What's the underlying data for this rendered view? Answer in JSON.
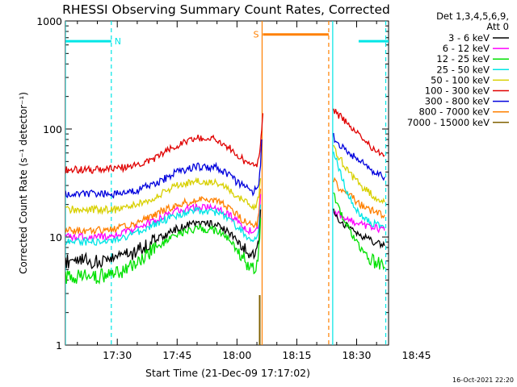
{
  "chart_data": {
    "type": "line",
    "title": "RHESSI Observing Summary Count Rates, Corrected",
    "xlabel": "Start Time (21-Dec-09 17:17:02)",
    "ylabel": "Corrected Count Rate (s⁻¹ detector⁻¹)",
    "yscale": "log",
    "ylim": [
      1,
      1000
    ],
    "xlim_minutes": [
      17.0,
      98.0
    ],
    "x_units": "minutes after 17:00 UT",
    "ytick_labels": [
      "1",
      "10",
      "100",
      "1000"
    ],
    "xtick_labels": [
      "17:30",
      "17:45",
      "18:00",
      "18:15",
      "18:30",
      "18:45"
    ],
    "xtick_values": [
      30,
      45,
      60,
      75,
      90,
      105
    ],
    "legend": {
      "placement": "right",
      "header": [
        "Det 1,3,4,5,6,9,",
        "Att 0"
      ],
      "entries": [
        {
          "label": "3 - 6 keV",
          "color": "#000000"
        },
        {
          "label": "6 - 12 keV",
          "color": "#ff00ff"
        },
        {
          "label": "12 - 25 keV",
          "color": "#00e000"
        },
        {
          "label": "25 - 50 keV",
          "color": "#00e6e6"
        },
        {
          "label": "50 - 100 keV",
          "color": "#d8d000"
        },
        {
          "label": "100 - 300 keV",
          "color": "#e00000"
        },
        {
          "label": "300 - 800 keV",
          "color": "#0000dd"
        },
        {
          "label": "800 - 7000 keV",
          "color": "#ff8000"
        },
        {
          "label": "7000 - 15000 keV",
          "color": "#806000"
        }
      ]
    },
    "series": [
      {
        "name": "100 - 300 keV",
        "color": "#e00000",
        "x": [
          17,
          20,
          25,
          30,
          35,
          40,
          45,
          50,
          55,
          58,
          60,
          62,
          64,
          65,
          65.5,
          65.9,
          66.2,
          66.5
        ],
        "y": [
          42,
          42,
          42,
          43,
          46,
          55,
          70,
          82,
          80,
          68,
          58,
          50,
          45,
          47,
          55,
          70,
          100,
          140
        ]
      },
      {
        "name": "300 - 800 keV",
        "color": "#0000dd",
        "x": [
          17,
          20,
          25,
          30,
          35,
          40,
          45,
          50,
          55,
          58,
          60,
          62,
          64,
          65,
          65.5,
          65.9,
          66.2
        ],
        "y": [
          25,
          25,
          25,
          25,
          27,
          32,
          40,
          45,
          44,
          38,
          32,
          29,
          26,
          28,
          32,
          45,
          80
        ]
      },
      {
        "name": "50 - 100 keV",
        "color": "#d8d000",
        "x": [
          17,
          20,
          25,
          30,
          35,
          40,
          45,
          50,
          55,
          58,
          60,
          62,
          64,
          65,
          65.5,
          65.9
        ],
        "y": [
          18,
          18,
          18,
          18,
          20,
          24,
          30,
          33,
          32,
          28,
          24,
          21,
          19,
          20,
          24,
          35
        ]
      },
      {
        "name": "800 - 7000 keV",
        "color": "#ff8000",
        "x": [
          17,
          20,
          25,
          30,
          35,
          40,
          45,
          50,
          55,
          58,
          60,
          62,
          64,
          65,
          65.5,
          65.9
        ],
        "y": [
          11.5,
          11.5,
          11.5,
          12,
          13.5,
          16.5,
          20,
          22,
          21.5,
          18.5,
          16,
          14,
          12.5,
          13,
          16,
          28
        ]
      },
      {
        "name": "6 - 12 keV",
        "color": "#ff00ff",
        "x": [
          17,
          20,
          25,
          30,
          35,
          40,
          45,
          50,
          55,
          58,
          60,
          62,
          64,
          65,
          65.5,
          65.9
        ],
        "y": [
          10,
          10,
          10,
          10.5,
          12,
          14.5,
          17.5,
          19,
          18.5,
          16,
          14,
          12,
          11,
          11.5,
          14,
          25
        ]
      },
      {
        "name": "25 - 50 keV",
        "color": "#00e6e6",
        "x": [
          17,
          20,
          25,
          30,
          35,
          40,
          45,
          50,
          55,
          58,
          60,
          62,
          64,
          65,
          65.5,
          65.9
        ],
        "y": [
          9,
          9,
          9,
          9.5,
          11,
          13.5,
          16,
          17.5,
          17,
          14.5,
          12.5,
          10.5,
          9.5,
          10,
          12,
          20
        ]
      },
      {
        "name": "3 - 6 keV",
        "color": "#000000",
        "x": [
          17,
          20,
          25,
          30,
          35,
          40,
          45,
          50,
          55,
          58,
          60,
          62,
          64,
          65,
          65.5,
          65.9
        ],
        "y": [
          6,
          6,
          6,
          6.3,
          7.5,
          9.5,
          12,
          13.5,
          13,
          11,
          9,
          7.5,
          6.5,
          7,
          9,
          18
        ]
      },
      {
        "name": "12 - 25 keV",
        "color": "#00e000",
        "x": [
          17,
          20,
          25,
          30,
          35,
          40,
          45,
          50,
          55,
          58,
          60,
          62,
          64,
          65,
          65.5,
          65.9
        ],
        "y": [
          4.3,
          4.3,
          4.3,
          4.6,
          5.8,
          8,
          10.5,
          12,
          11.5,
          9.5,
          7.5,
          6,
          5,
          5.5,
          7.5,
          15
        ]
      },
      {
        "name": "100 - 300 keV (late)",
        "color": "#e00000",
        "x": [
          84.2,
          85,
          87,
          89,
          91,
          93,
          95,
          97
        ],
        "y": [
          150,
          140,
          120,
          100,
          85,
          72,
          62,
          57
        ]
      },
      {
        "name": "300 - 800 keV (late)",
        "color": "#0000dd",
        "x": [
          84.2,
          85,
          87,
          89,
          91,
          93,
          95,
          97
        ],
        "y": [
          85,
          75,
          65,
          57,
          50,
          44,
          39,
          36
        ]
      },
      {
        "name": "50 - 100 keV (late)",
        "color": "#d8d000",
        "x": [
          84.2,
          85,
          87,
          89,
          91,
          93,
          95,
          97
        ],
        "y": [
          70,
          60,
          45,
          36,
          30,
          26,
          23,
          21
        ]
      },
      {
        "name": "800 - 7000 keV (late)",
        "color": "#ff8000",
        "x": [
          84.2,
          85,
          87,
          89,
          91,
          93,
          95,
          97
        ],
        "y": [
          34,
          30,
          26,
          23,
          20,
          18,
          17,
          16
        ]
      },
      {
        "name": "25 - 50 keV (late)",
        "color": "#00e6e6",
        "x": [
          84.2,
          85,
          87,
          89,
          91,
          93,
          95,
          97
        ],
        "y": [
          65,
          50,
          30,
          20,
          16,
          14,
          13,
          12
        ]
      },
      {
        "name": "6 - 12 keV (late)",
        "color": "#ff00ff",
        "x": [
          84.2,
          85,
          87,
          89,
          91,
          93,
          95,
          97
        ],
        "y": [
          18,
          16.5,
          15,
          14,
          13,
          12.5,
          12,
          11.5
        ]
      },
      {
        "name": "3 - 6 keV (late)",
        "color": "#000000",
        "x": [
          84.2,
          85,
          87,
          89,
          91,
          93,
          95,
          97
        ],
        "y": [
          17,
          15,
          13,
          11.5,
          10.5,
          9.5,
          8.8,
          8.3
        ]
      },
      {
        "name": "12 - 25 keV (late)",
        "color": "#00e000",
        "x": [
          84.2,
          85,
          87,
          89,
          91,
          93,
          95,
          97
        ],
        "y": [
          26,
          20,
          14,
          10,
          8,
          6.5,
          5.8,
          5.3
        ]
      }
    ],
    "spikes": [
      {
        "name": "7000 - 15000 keV spike",
        "color": "#806000",
        "x": 65.7,
        "y": [
          1,
          2.9
        ]
      }
    ],
    "flags": [
      {
        "label": "N",
        "color": "#00e6e6",
        "x_start": 17,
        "x_end": 28.5,
        "y": 650
      },
      {
        "label": "",
        "color": "#00e6e6",
        "x_start": 90.5,
        "x_end": 98,
        "y": 650
      },
      {
        "label": "S",
        "color": "#ff8000",
        "x_start": 66.5,
        "x_end": 83.0,
        "y": 750
      }
    ],
    "vlines": [
      {
        "x": 17,
        "style": "solid",
        "color": "#00e6e6"
      },
      {
        "x": 28.5,
        "style": "dashed",
        "color": "#00e6e6"
      },
      {
        "x": 66.3,
        "style": "solid",
        "color": "#ff8000"
      },
      {
        "x": 83.0,
        "style": "dashed",
        "color": "#ff8000"
      },
      {
        "x": 84.0,
        "style": "solid",
        "color": "#00e6e6"
      },
      {
        "x": 97.3,
        "style": "dashed",
        "color": "#00e6e6"
      }
    ],
    "footer_timestamp": "16-Oct-2021 22:20"
  }
}
